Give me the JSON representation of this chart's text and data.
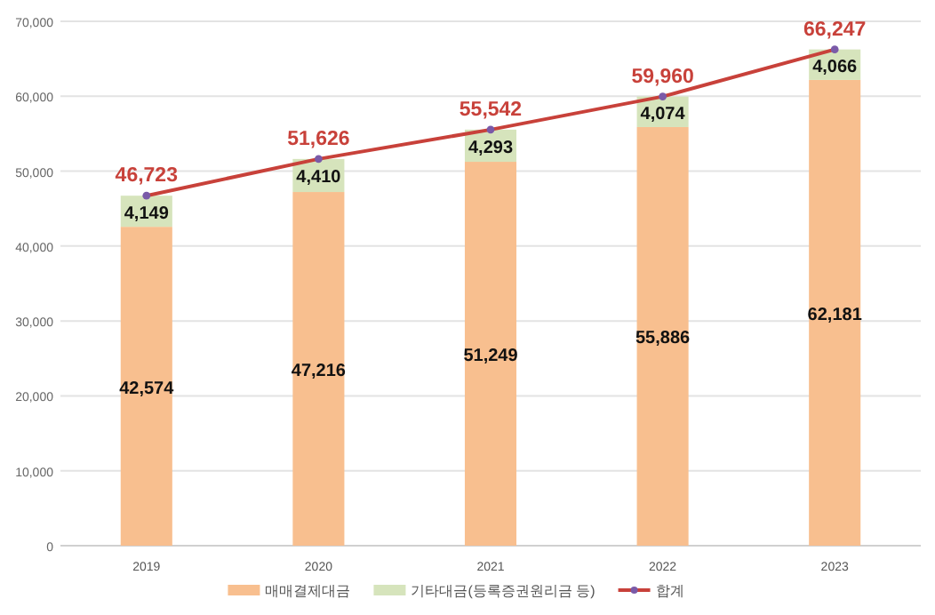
{
  "chart_data": {
    "type": "bar",
    "stacked": true,
    "categories": [
      "2019",
      "2020",
      "2021",
      "2022",
      "2023"
    ],
    "series": [
      {
        "name": "매매결제대금",
        "color": "#f8bf8f",
        "values": [
          42574,
          47216,
          51249,
          55886,
          62181
        ],
        "value_labels": [
          "42,574",
          "47,216",
          "51,249",
          "55,886",
          "62,181"
        ]
      },
      {
        "name": "기타대금(등록증권원리금 등)",
        "color": "#d6e4bc",
        "values": [
          4149,
          4410,
          4293,
          4074,
          4066
        ],
        "value_labels": [
          "4,149",
          "4,410",
          "4,293",
          "4,074",
          "4,066"
        ]
      },
      {
        "name": "합계",
        "type": "line",
        "color": "#c8413a",
        "marker": "circle",
        "values": [
          46723,
          51626,
          55542,
          59960,
          66247
        ],
        "value_labels": [
          "46,723",
          "51,626",
          "55,542",
          "59,960",
          "66,247"
        ]
      }
    ],
    "ylim": [
      0,
      70000
    ],
    "yticks": [
      {
        "value": 0,
        "label": "0"
      },
      {
        "value": 10000,
        "label": "10,000"
      },
      {
        "value": 20000,
        "label": "20,000"
      },
      {
        "value": 30000,
        "label": "30,000"
      },
      {
        "value": 40000,
        "label": "40,000"
      },
      {
        "value": 50000,
        "label": "50,000"
      },
      {
        "value": 60000,
        "label": "60,000"
      },
      {
        "value": 70000,
        "label": "70,000"
      }
    ],
    "grid": "y",
    "legend": "bottom"
  }
}
